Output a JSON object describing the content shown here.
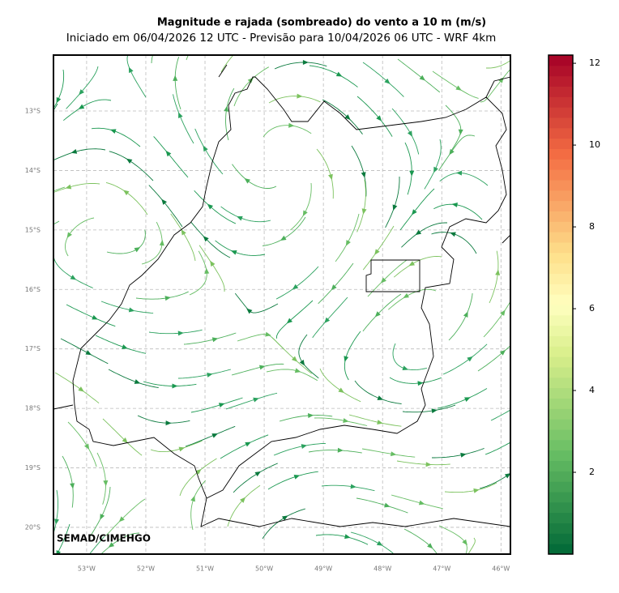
{
  "header": {
    "title": "Magnitude e rajada (sombreado) do vento a 10 m (m/s)",
    "subtitle": "Iniciado em 06/04/2026 12 UTC - Previsão para 10/04/2026 06 UTC - WRF 4km"
  },
  "map": {
    "lonlim": [
      -53.56,
      -45.84
    ],
    "latlim": [
      -12.06,
      -20.45
    ],
    "xticks": [
      {
        "value": -53,
        "label": "53°W"
      },
      {
        "value": -52,
        "label": "52°W"
      },
      {
        "value": -51,
        "label": "51°W"
      },
      {
        "value": -50,
        "label": "50°W"
      },
      {
        "value": -49,
        "label": "49°W"
      },
      {
        "value": -48,
        "label": "48°W"
      },
      {
        "value": -47,
        "label": "47°W"
      },
      {
        "value": -46,
        "label": "46°W"
      }
    ],
    "yticks": [
      {
        "value": -13,
        "label": "13°S"
      },
      {
        "value": -14,
        "label": "14°S"
      },
      {
        "value": -15,
        "label": "15°S"
      },
      {
        "value": -16,
        "label": "16°S"
      },
      {
        "value": -17,
        "label": "17°S"
      },
      {
        "value": -18,
        "label": "18°S"
      },
      {
        "value": -19,
        "label": "19°S"
      },
      {
        "value": -20,
        "label": "20°S"
      }
    ],
    "grid": true,
    "credit": "SEMAD/CIMEHGO"
  },
  "colorbar": {
    "lim": [
      0,
      12.2
    ],
    "ticks": [
      2,
      4,
      6,
      8,
      10,
      12
    ]
  }
}
